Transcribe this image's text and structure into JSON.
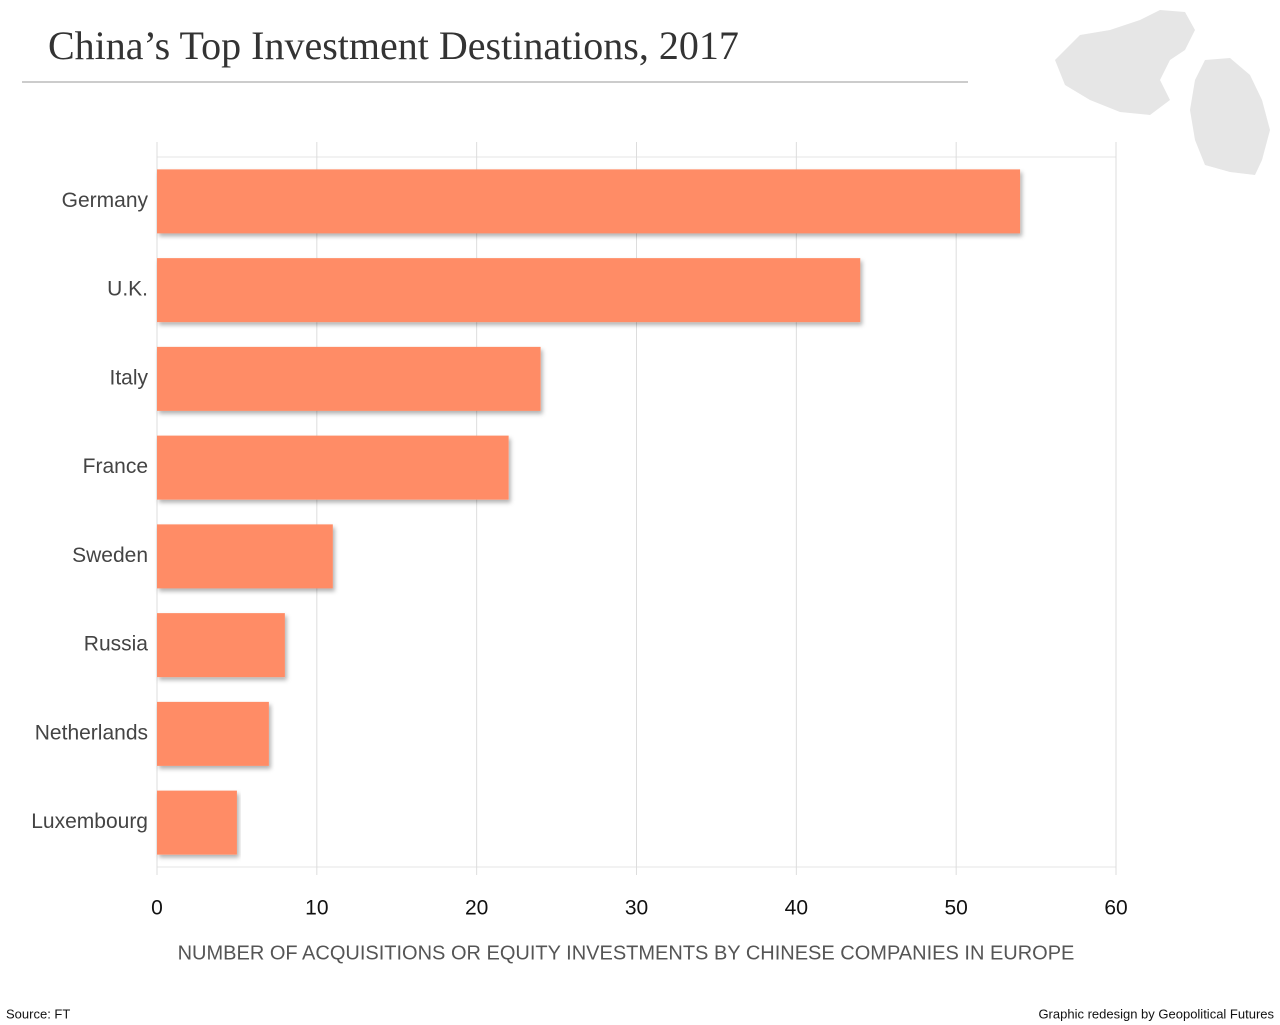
{
  "chart_data": {
    "type": "bar",
    "orientation": "horizontal",
    "title": "China’s Top Investment Destinations, 2017",
    "categories": [
      "Germany",
      "U.K.",
      "Italy",
      "France",
      "Sweden",
      "Russia",
      "Netherlands",
      "Luxembourg"
    ],
    "values": [
      54,
      44,
      24,
      22,
      11,
      8,
      7,
      5
    ],
    "color": "#ff8c66",
    "xlim": [
      0,
      60
    ],
    "xticks": [
      0,
      10,
      20,
      30,
      40,
      50,
      60
    ],
    "grid": true,
    "x_label": "NUMBER OF ACQUISITIONS OR EQUITY INVESTMENTS BY CHINESE COMPANIES IN EUROPE",
    "source": "Source: FT",
    "credit": "Graphic redesign by Geopolitical Futures"
  }
}
